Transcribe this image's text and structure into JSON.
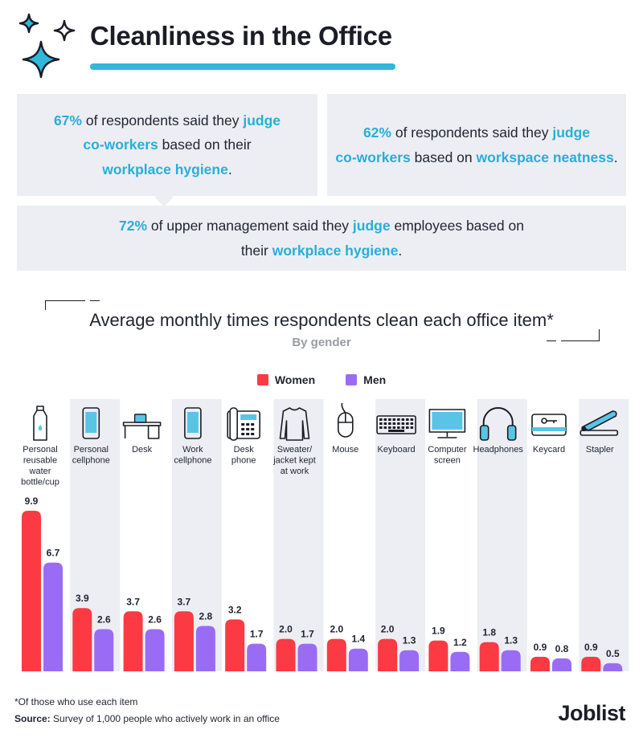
{
  "header": {
    "title": "Cleanliness in the Office",
    "accent": "#2fb8d9"
  },
  "stats": [
    {
      "parts": [
        {
          "text": "67%",
          "hl": true
        },
        {
          "text": " of respondents said they ",
          "hl": false
        },
        {
          "text": "judge",
          "hl": true
        },
        {
          "text": "\nco-workers",
          "hl": true
        },
        {
          "text": " based on their\n",
          "hl": false
        },
        {
          "text": "workplace hygiene",
          "hl": true
        },
        {
          "text": ".",
          "hl": false
        }
      ]
    },
    {
      "parts": [
        {
          "text": "62%",
          "hl": true
        },
        {
          "text": " of respondents said they ",
          "hl": false
        },
        {
          "text": "judge",
          "hl": true
        },
        {
          "text": "\nco-workers",
          "hl": true
        },
        {
          "text": " based on ",
          "hl": false
        },
        {
          "text": "workspace neatness",
          "hl": true
        },
        {
          "text": ".",
          "hl": false
        }
      ]
    },
    {
      "parts": [
        {
          "text": "72%",
          "hl": true
        },
        {
          "text": " of upper management said they ",
          "hl": false
        },
        {
          "text": "judge",
          "hl": true
        },
        {
          "text": " employees based on\ntheir ",
          "hl": false
        },
        {
          "text": "workplace hygiene",
          "hl": true
        },
        {
          "text": ".",
          "hl": false
        }
      ]
    }
  ],
  "legend": {
    "women_label": "Women",
    "men_label": "Men"
  },
  "colors": {
    "women": "#fc3a43",
    "men": "#9a6cf5",
    "column_band": "#eceef3",
    "highlight": "#2aaed8"
  },
  "chart_data": {
    "type": "bar",
    "title": "Average monthly times respondents clean each office item*",
    "subtitle": "By gender",
    "categories": [
      "Personal reusable water bottle/cup",
      "Personal cellphone",
      "Desk",
      "Work cellphone",
      "Desk phone",
      "Sweater/ jacket kept at work",
      "Mouse",
      "Keyboard",
      "Computer screen",
      "Headphones",
      "Keycard",
      "Stapler"
    ],
    "category_lines": [
      [
        "Personal",
        "reusable",
        "water",
        "bottle/cup"
      ],
      [
        "Personal",
        "cellphone"
      ],
      [
        "Desk"
      ],
      [
        "Work",
        "cellphone"
      ],
      [
        "Desk",
        "phone"
      ],
      [
        "Sweater/",
        "jacket kept",
        "at work"
      ],
      [
        "Mouse"
      ],
      [
        "Keyboard"
      ],
      [
        "Computer",
        "screen"
      ],
      [
        "Headphones"
      ],
      [
        "Keycard"
      ],
      [
        "Stapler"
      ]
    ],
    "icons": [
      "water-bottle-icon",
      "cellphone-icon",
      "desk-icon",
      "work-cellphone-icon",
      "desk-phone-icon",
      "sweater-icon",
      "mouse-icon",
      "keyboard-icon",
      "computer-screen-icon",
      "headphones-icon",
      "keycard-icon",
      "stapler-icon"
    ],
    "series": [
      {
        "name": "Women",
        "values": [
          9.9,
          3.9,
          3.7,
          3.7,
          3.2,
          2.0,
          2.0,
          2.0,
          1.9,
          1.8,
          0.9,
          0.9
        ],
        "labels": [
          "9.9",
          "3.9",
          "3.7",
          "3.7",
          "3.2",
          "2.0",
          "2.0",
          "2.0",
          "1.9",
          "1.8",
          "0.9",
          "0.9"
        ]
      },
      {
        "name": "Men",
        "values": [
          6.7,
          2.6,
          2.6,
          2.8,
          1.7,
          1.7,
          1.4,
          1.3,
          1.2,
          1.3,
          0.8,
          0.5
        ],
        "labels": [
          "6.7",
          "2.6",
          "2.6",
          "2.8",
          "1.7",
          "1.7",
          "1.4",
          "1.3",
          "1.2",
          "1.3",
          "0.8",
          "0.5"
        ]
      }
    ],
    "ylim": [
      0,
      10
    ],
    "grid": false,
    "legend_position": "top-center"
  },
  "footer": {
    "note": "*Of those who use each item",
    "source_label": "Source:",
    "source_text": " Survey of 1,000 people who actively work in an office",
    "logo": "Joblist"
  }
}
